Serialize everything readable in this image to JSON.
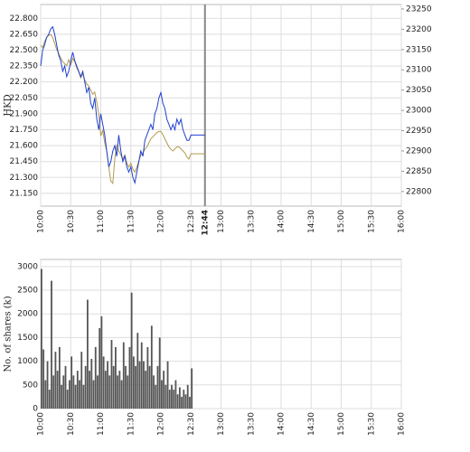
{
  "chart_data": [
    {
      "type": "line",
      "ylabel": "HKD",
      "xlim": [
        "10:00",
        "16:00"
      ],
      "xticks": [
        "10:00",
        "10:30",
        "11:00",
        "11:30",
        "12:00",
        "12:30",
        "13:00",
        "13:30",
        "14:00",
        "14:30",
        "15:00",
        "15:30",
        "16:00"
      ],
      "marker": "12:44",
      "ylim": [
        21.03,
        22.93
      ],
      "yticks": [
        {
          "value": 21.15,
          "label": "21.150"
        },
        {
          "value": 21.3,
          "label": "21.300"
        },
        {
          "value": 21.45,
          "label": "21.450"
        },
        {
          "value": 21.6,
          "label": "21.600"
        },
        {
          "value": 21.75,
          "label": "21.750"
        },
        {
          "value": 21.9,
          "label": "21.900"
        },
        {
          "value": 22.05,
          "label": "22.050"
        },
        {
          "value": 22.2,
          "label": "22.200"
        },
        {
          "value": 22.35,
          "label": "22.350"
        },
        {
          "value": 22.5,
          "label": "22.500"
        },
        {
          "value": 22.65,
          "label": "22.650"
        },
        {
          "value": 22.8,
          "label": "22.800"
        }
      ],
      "y2lim": [
        22764,
        23261
      ],
      "y2ticks": [
        22800,
        22850,
        22900,
        22950,
        23000,
        23050,
        23100,
        23150,
        23200,
        23250
      ],
      "grid": true,
      "x": [
        "10:00",
        "10:02",
        "10:04",
        "10:06",
        "10:08",
        "10:10",
        "10:12",
        "10:14",
        "10:16",
        "10:18",
        "10:20",
        "10:22",
        "10:24",
        "10:26",
        "10:28",
        "10:30",
        "10:32",
        "10:34",
        "10:36",
        "10:38",
        "10:40",
        "10:42",
        "10:44",
        "10:46",
        "10:48",
        "10:50",
        "10:52",
        "10:54",
        "10:56",
        "10:58",
        "11:00",
        "11:02",
        "11:04",
        "11:06",
        "11:08",
        "11:10",
        "11:12",
        "11:14",
        "11:16",
        "11:18",
        "11:20",
        "11:22",
        "11:24",
        "11:26",
        "11:28",
        "11:30",
        "11:32",
        "11:34",
        "11:36",
        "11:38",
        "11:40",
        "11:42",
        "11:44",
        "11:46",
        "11:48",
        "11:50",
        "11:52",
        "11:54",
        "11:56",
        "11:58",
        "12:00",
        "12:02",
        "12:04",
        "12:06",
        "12:08",
        "12:10",
        "12:12",
        "12:14",
        "12:16",
        "12:18",
        "12:20",
        "12:22",
        "12:24",
        "12:26",
        "12:28",
        "12:30",
        "12:44"
      ],
      "series": [
        {
          "color": "#b09a50",
          "axis": "y2",
          "values": [
            23160,
            23155,
            23170,
            23180,
            23185,
            23187,
            23180,
            23165,
            23150,
            23140,
            23130,
            23120,
            23115,
            23110,
            23125,
            23112,
            23128,
            23120,
            23105,
            23095,
            23080,
            23090,
            23075,
            23065,
            23060,
            23050,
            23040,
            23045,
            23020,
            22990,
            22937,
            22950,
            22920,
            22900,
            22860,
            22826,
            22820,
            22880,
            22915,
            22900,
            22890,
            22880,
            22890,
            22870,
            22860,
            22870,
            22855,
            22848,
            22860,
            22875,
            22890,
            22895,
            22904,
            22910,
            22920,
            22930,
            22935,
            22940,
            22945,
            22948,
            22948,
            22940,
            22930,
            22920,
            22910,
            22904,
            22900,
            22905,
            22910,
            22910,
            22905,
            22900,
            22895,
            22885,
            22880,
            22893,
            22893
          ]
        },
        {
          "color": "#2040d0",
          "values": [
            22.35,
            22.5,
            22.55,
            22.62,
            22.65,
            22.7,
            22.72,
            22.65,
            22.55,
            22.45,
            22.4,
            22.3,
            22.35,
            22.25,
            22.3,
            22.4,
            22.48,
            22.4,
            22.35,
            22.3,
            22.25,
            22.3,
            22.2,
            22.1,
            22.15,
            22.0,
            21.95,
            22.05,
            21.85,
            21.75,
            21.9,
            21.8,
            21.7,
            21.55,
            21.4,
            21.45,
            21.55,
            21.6,
            21.5,
            21.7,
            21.55,
            21.45,
            21.5,
            21.4,
            21.35,
            21.4,
            21.3,
            21.25,
            21.35,
            21.45,
            21.55,
            21.5,
            21.65,
            21.7,
            21.75,
            21.8,
            21.75,
            21.9,
            21.95,
            22.05,
            22.1,
            22.0,
            21.95,
            21.85,
            21.8,
            21.75,
            21.8,
            21.75,
            21.85,
            21.8,
            21.85,
            21.75,
            21.7,
            21.65,
            21.65,
            21.7,
            21.7
          ]
        }
      ]
    },
    {
      "type": "bar",
      "ylabel": "No. of shares (k)",
      "xlim": [
        "10:00",
        "16:00"
      ],
      "xticks": [
        "10:00",
        "10:30",
        "11:00",
        "11:30",
        "12:00",
        "12:30",
        "13:00",
        "13:30",
        "14:00",
        "14:30",
        "15:00",
        "15:30",
        "16:00"
      ],
      "ylim": [
        0,
        3150
      ],
      "yticks": [
        0,
        500,
        1000,
        1500,
        2000,
        2500,
        3000
      ],
      "grid": true,
      "color": "#555555",
      "x": [
        "10:00",
        "10:02",
        "10:04",
        "10:06",
        "10:08",
        "10:10",
        "10:12",
        "10:14",
        "10:16",
        "10:18",
        "10:20",
        "10:22",
        "10:24",
        "10:26",
        "10:28",
        "10:30",
        "10:32",
        "10:34",
        "10:36",
        "10:38",
        "10:40",
        "10:42",
        "10:44",
        "10:46",
        "10:48",
        "10:50",
        "10:52",
        "10:54",
        "10:56",
        "10:58",
        "11:00",
        "11:02",
        "11:04",
        "11:06",
        "11:08",
        "11:10",
        "11:12",
        "11:14",
        "11:16",
        "11:18",
        "11:20",
        "11:22",
        "11:24",
        "11:26",
        "11:28",
        "11:30",
        "11:32",
        "11:34",
        "11:36",
        "11:38",
        "11:40",
        "11:42",
        "11:44",
        "11:46",
        "11:48",
        "11:50",
        "11:52",
        "11:54",
        "11:56",
        "11:58",
        "12:00",
        "12:02",
        "12:04",
        "12:06",
        "12:08",
        "12:10",
        "12:12",
        "12:14",
        "12:16",
        "12:18",
        "12:20",
        "12:22",
        "12:24",
        "12:26",
        "12:28",
        "12:30"
      ],
      "values": [
        2950,
        1250,
        600,
        1000,
        400,
        2700,
        700,
        1200,
        800,
        1300,
        500,
        700,
        900,
        400,
        600,
        1100,
        700,
        500,
        800,
        600,
        1200,
        500,
        900,
        2300,
        800,
        1050,
        600,
        1300,
        700,
        1700,
        1950,
        1100,
        800,
        1000,
        700,
        1450,
        900,
        1300,
        700,
        800,
        600,
        1400,
        900,
        700,
        1300,
        2450,
        1100,
        900,
        1600,
        1000,
        1400,
        1000,
        800,
        1300,
        900,
        1750,
        700,
        500,
        900,
        1500,
        600,
        800,
        500,
        1000,
        400,
        500,
        400,
        600,
        300,
        450,
        250,
        400,
        300,
        500,
        250,
        850
      ]
    }
  ]
}
